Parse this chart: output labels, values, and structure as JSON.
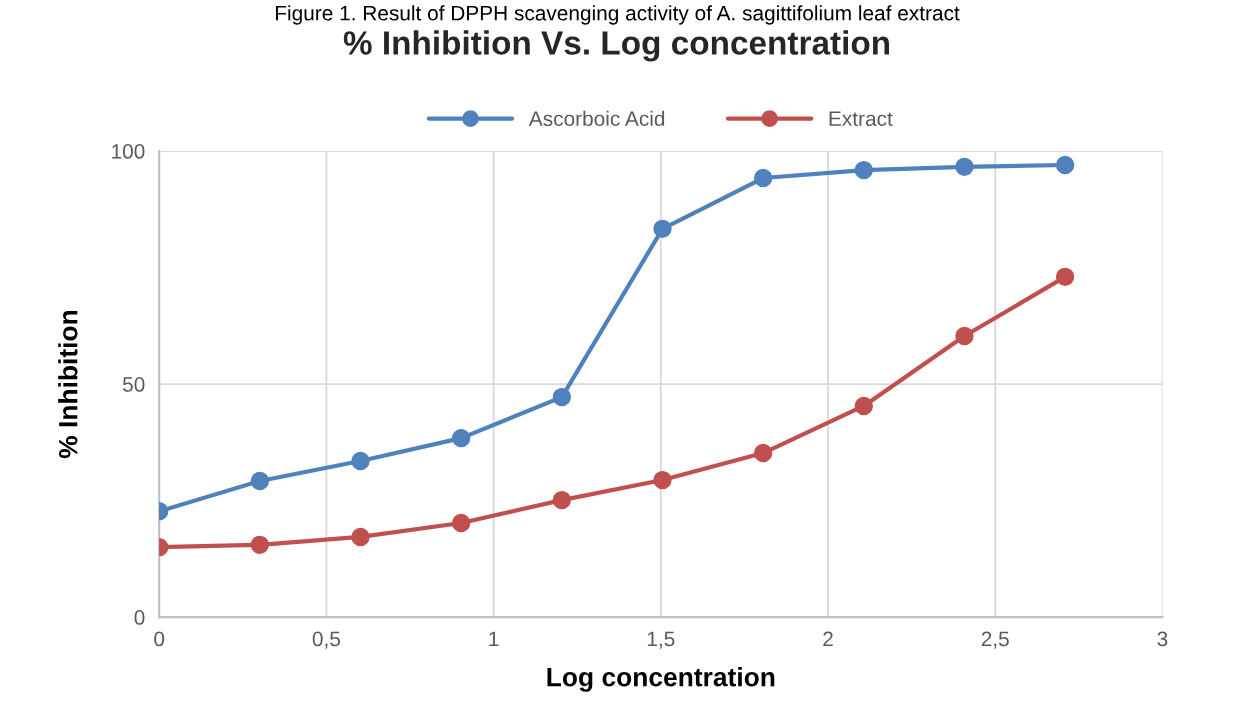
{
  "chart_data": {
    "type": "line",
    "title": "% Inhibition Vs. Log concentration",
    "xlabel": "Log concentration",
    "ylabel": "% Inhibition",
    "annotations": [
      "Figure 1. Result of DPPH scavenging activity of A. sagittifolium leaf extract"
    ],
    "x": [
      0,
      0.301,
      0.602,
      0.903,
      1.204,
      1.505,
      1.806,
      2.107,
      2.408,
      2.709
    ],
    "series": [
      {
        "name": "Ascorboic Acid",
        "color": "#4f81bd",
        "values": [
          22.7,
          29.2,
          33.5,
          38.4,
          47.2,
          83.3,
          94.2,
          95.9,
          96.6,
          97.0
        ]
      },
      {
        "name": "Extract",
        "color": "#c0504d",
        "values": [
          15.0,
          15.5,
          17.2,
          20.2,
          25.1,
          29.4,
          35.2,
          45.3,
          60.3,
          73.0
        ]
      }
    ],
    "xlim": [
      0,
      3
    ],
    "xticks": [
      0,
      {
        "value": 0.5,
        "label": "0,5"
      },
      1,
      {
        "value": 1.5,
        "label": "1,5"
      },
      2,
      {
        "value": 2.5,
        "label": "2,5"
      },
      3
    ],
    "ylim": [
      0,
      100
    ],
    "yticks": [
      0,
      50,
      100
    ],
    "grid": true,
    "legend": "top",
    "marker": "circle",
    "line_style": "solid"
  }
}
